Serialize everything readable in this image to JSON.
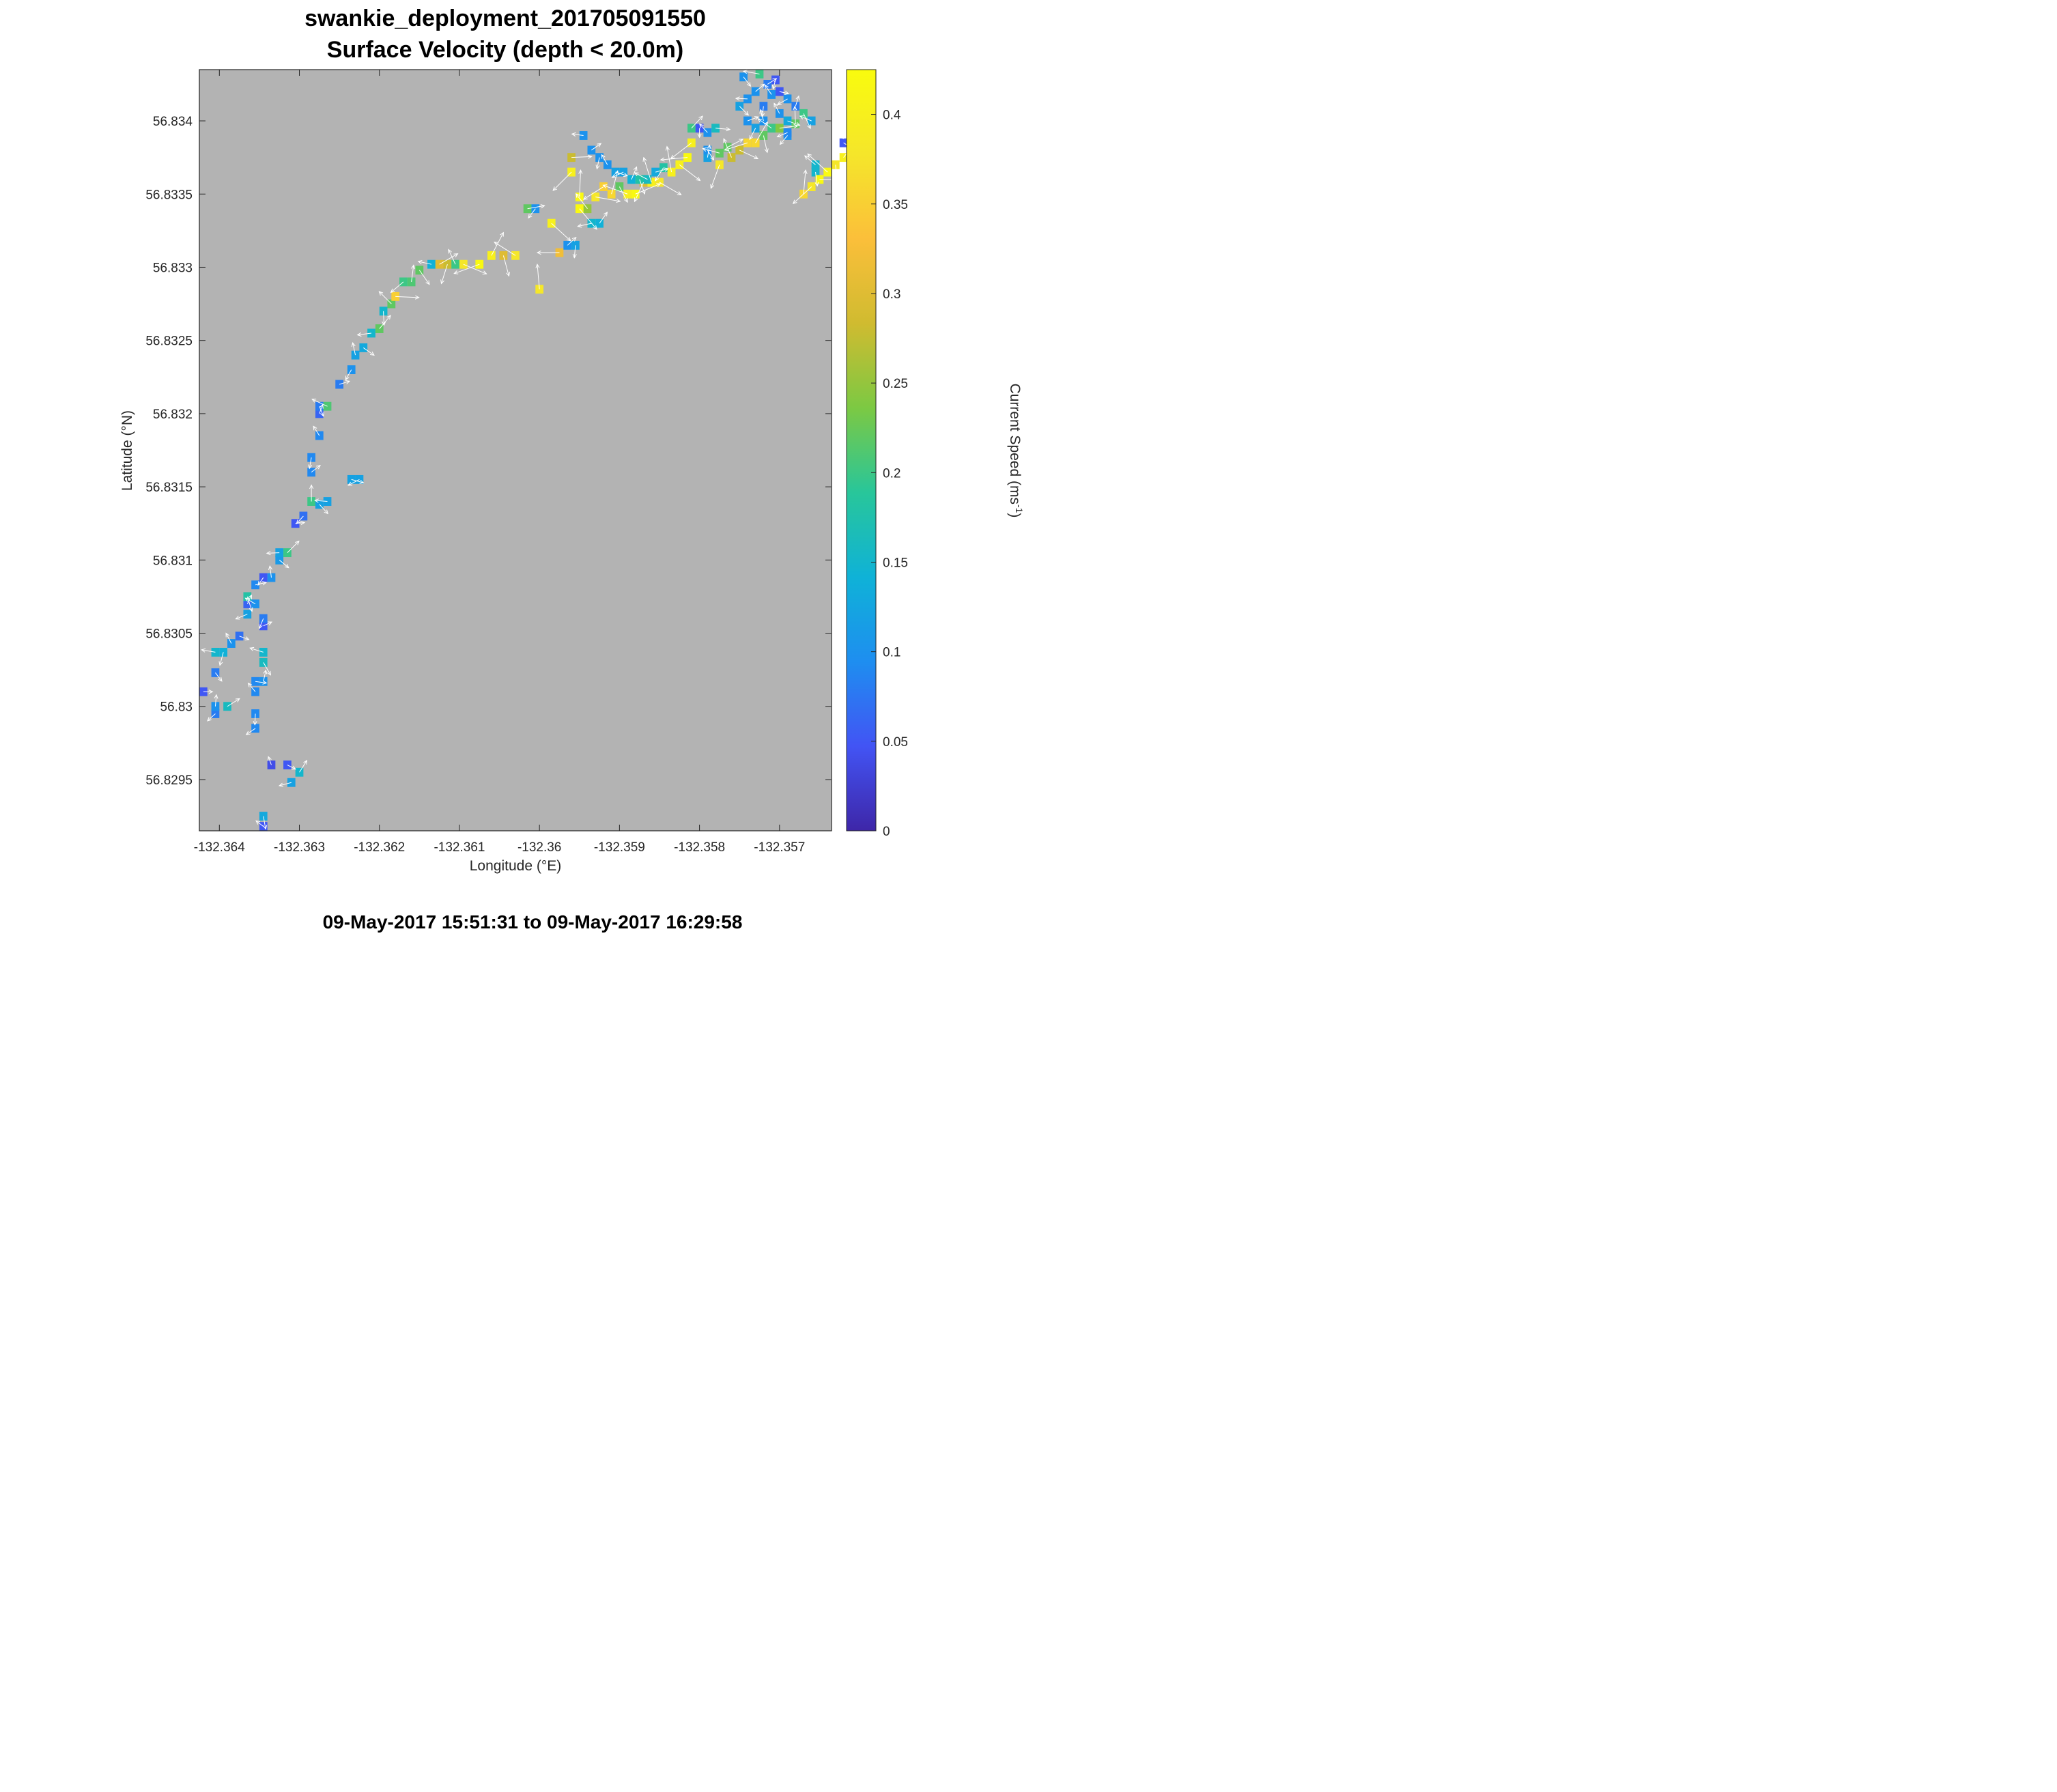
{
  "title_line1": "swankie_deployment_201705091550",
  "title_line2": "Surface Velocity (depth < 20.0m)",
  "footer": "09-May-2017 15:51:31 to 09-May-2017 16:29:58",
  "colors": {
    "plot_background": "#b3b3b3",
    "arrow": "#ffffff",
    "colormap": [
      "#3e26a8",
      "#4254f4",
      "#1e8ef0",
      "#0fb2d7",
      "#28c69a",
      "#7cc943",
      "#d0bb30",
      "#fbbf3a",
      "#f5e62a",
      "#f9fb0e"
    ]
  },
  "chart_data": {
    "type": "heatmap",
    "subtype": "gridded vector field (speed-colored cells with velocity arrows)",
    "xlabel": "Longitude (°E)",
    "ylabel": "Latitude (°N)",
    "colorbar_label": "Current Speed (ms",
    "colorbar_label_sup": "-1",
    "colorbar_label_end": ")",
    "xlim": [
      -132.36425,
      -132.35635
    ],
    "ylim": [
      56.82915,
      56.83435
    ],
    "clim": [
      0,
      0.425
    ],
    "grid": false,
    "xticks": [
      -132.364,
      -132.363,
      -132.362,
      -132.361,
      -132.36,
      -132.359,
      -132.358,
      -132.357
    ],
    "xtick_labels": [
      "-132.364",
      "-132.363",
      "-132.362",
      "-132.361",
      "-132.36",
      "-132.359",
      "-132.358",
      "-132.357"
    ],
    "yticks": [
      56.8295,
      56.83,
      56.8305,
      56.831,
      56.8315,
      56.832,
      56.8325,
      56.833,
      56.8335,
      56.834
    ],
    "ytick_labels": [
      "56.8295",
      "56.83",
      "56.8305",
      "56.831",
      "56.8315",
      "56.832",
      "56.8325",
      "56.833",
      "56.8335",
      "56.834"
    ],
    "cticks": [
      0,
      0.05,
      0.1,
      0.15,
      0.2,
      0.25,
      0.3,
      0.35,
      0.4
    ],
    "ctick_labels": [
      "0",
      "0.05",
      "0.1",
      "0.15",
      "0.2",
      "0.25",
      "0.3",
      "0.35",
      "0.4"
    ],
    "cell_size": {
      "lon": 0.0001,
      "lat": 6e-05
    },
    "cells": [
      {
        "lon": -132.3642,
        "lat": 56.8301,
        "speed": 0.05
      },
      {
        "lon": -132.36405,
        "lat": 56.82995,
        "speed": 0.08
      },
      {
        "lon": -132.36405,
        "lat": 56.83,
        "speed": 0.1
      },
      {
        "lon": -132.36405,
        "lat": 56.83023,
        "speed": 0.08
      },
      {
        "lon": -132.36405,
        "lat": 56.83037,
        "speed": 0.15
      },
      {
        "lon": -132.3639,
        "lat": 56.83,
        "speed": 0.16
      },
      {
        "lon": -132.36395,
        "lat": 56.83037,
        "speed": 0.14
      },
      {
        "lon": -132.36385,
        "lat": 56.83043,
        "speed": 0.1
      },
      {
        "lon": -132.36375,
        "lat": 56.83048,
        "speed": 0.07
      },
      {
        "lon": -132.36365,
        "lat": 56.83063,
        "speed": 0.12
      },
      {
        "lon": -132.36365,
        "lat": 56.8307,
        "speed": 0.06
      },
      {
        "lon": -132.36365,
        "lat": 56.83075,
        "speed": 0.18
      },
      {
        "lon": -132.36355,
        "lat": 56.8307,
        "speed": 0.1
      },
      {
        "lon": -132.36355,
        "lat": 56.83083,
        "speed": 0.09
      },
      {
        "lon": -132.36345,
        "lat": 56.83088,
        "speed": 0.05
      },
      {
        "lon": -132.36335,
        "lat": 56.83088,
        "speed": 0.1
      },
      {
        "lon": -132.36325,
        "lat": 56.831,
        "speed": 0.11
      },
      {
        "lon": -132.36325,
        "lat": 56.83105,
        "speed": 0.12
      },
      {
        "lon": -132.36315,
        "lat": 56.83105,
        "speed": 0.2
      },
      {
        "lon": -132.36355,
        "lat": 56.82995,
        "speed": 0.09
      },
      {
        "lon": -132.36355,
        "lat": 56.8301,
        "speed": 0.09
      },
      {
        "lon": -132.36355,
        "lat": 56.83017,
        "speed": 0.09
      },
      {
        "lon": -132.36355,
        "lat": 56.82985,
        "speed": 0.09
      },
      {
        "lon": -132.36345,
        "lat": 56.83017,
        "speed": 0.1
      },
      {
        "lon": -132.36345,
        "lat": 56.8303,
        "speed": 0.16
      },
      {
        "lon": -132.36345,
        "lat": 56.83037,
        "speed": 0.15
      },
      {
        "lon": -132.36345,
        "lat": 56.83055,
        "speed": 0.05
      },
      {
        "lon": -132.36345,
        "lat": 56.8306,
        "speed": 0.08
      },
      {
        "lon": -132.36335,
        "lat": 56.8296,
        "speed": 0.04
      },
      {
        "lon": -132.36315,
        "lat": 56.8296,
        "speed": 0.05
      },
      {
        "lon": -132.3631,
        "lat": 56.82948,
        "speed": 0.12
      },
      {
        "lon": -132.363,
        "lat": 56.82955,
        "speed": 0.15
      },
      {
        "lon": -132.36345,
        "lat": 56.82925,
        "speed": 0.13
      },
      {
        "lon": -132.36345,
        "lat": 56.82918,
        "speed": 0.05
      },
      {
        "lon": -132.36305,
        "lat": 56.83125,
        "speed": 0.05
      },
      {
        "lon": -132.36295,
        "lat": 56.8313,
        "speed": 0.07
      },
      {
        "lon": -132.36285,
        "lat": 56.8314,
        "speed": 0.2
      },
      {
        "lon": -132.36275,
        "lat": 56.83138,
        "speed": 0.12
      },
      {
        "lon": -132.36265,
        "lat": 56.8314,
        "speed": 0.12
      },
      {
        "lon": -132.36285,
        "lat": 56.8316,
        "speed": 0.09
      },
      {
        "lon": -132.36285,
        "lat": 56.8317,
        "speed": 0.09
      },
      {
        "lon": -132.36275,
        "lat": 56.83185,
        "speed": 0.09
      },
      {
        "lon": -132.36235,
        "lat": 56.83155,
        "speed": 0.12
      },
      {
        "lon": -132.36225,
        "lat": 56.83155,
        "speed": 0.12
      },
      {
        "lon": -132.36275,
        "lat": 56.832,
        "speed": 0.06
      },
      {
        "lon": -132.36275,
        "lat": 56.83205,
        "speed": 0.08
      },
      {
        "lon": -132.36265,
        "lat": 56.83205,
        "speed": 0.21
      },
      {
        "lon": -132.3625,
        "lat": 56.8322,
        "speed": 0.08
      },
      {
        "lon": -132.36235,
        "lat": 56.8323,
        "speed": 0.1
      },
      {
        "lon": -132.3623,
        "lat": 56.8324,
        "speed": 0.12
      },
      {
        "lon": -132.3622,
        "lat": 56.83245,
        "speed": 0.13
      },
      {
        "lon": -132.3621,
        "lat": 56.83255,
        "speed": 0.15
      },
      {
        "lon": -132.362,
        "lat": 56.83258,
        "speed": 0.22
      },
      {
        "lon": -132.36195,
        "lat": 56.8327,
        "speed": 0.15
      },
      {
        "lon": -132.36185,
        "lat": 56.83275,
        "speed": 0.22
      },
      {
        "lon": -132.3618,
        "lat": 56.8328,
        "speed": 0.35
      },
      {
        "lon": -132.3617,
        "lat": 56.8329,
        "speed": 0.2
      },
      {
        "lon": -132.3616,
        "lat": 56.8329,
        "speed": 0.21
      },
      {
        "lon": -132.3615,
        "lat": 56.83298,
        "speed": 0.22
      },
      {
        "lon": -132.36135,
        "lat": 56.83302,
        "speed": 0.14
      },
      {
        "lon": -132.36125,
        "lat": 56.83302,
        "speed": 0.3
      },
      {
        "lon": -132.36115,
        "lat": 56.83302,
        "speed": 0.28
      },
      {
        "lon": -132.36105,
        "lat": 56.83302,
        "speed": 0.2
      },
      {
        "lon": -132.36095,
        "lat": 56.83302,
        "speed": 0.38
      },
      {
        "lon": -132.36075,
        "lat": 56.83302,
        "speed": 0.42
      },
      {
        "lon": -132.3606,
        "lat": 56.83308,
        "speed": 0.4
      },
      {
        "lon": -132.36045,
        "lat": 56.83308,
        "speed": 0.3
      },
      {
        "lon": -132.3603,
        "lat": 56.83308,
        "speed": 0.38
      },
      {
        "lon": -132.36015,
        "lat": 56.8334,
        "speed": 0.22
      },
      {
        "lon": -132.36005,
        "lat": 56.8334,
        "speed": 0.1
      },
      {
        "lon": -132.36,
        "lat": 56.83285,
        "speed": 0.38
      },
      {
        "lon": -132.35985,
        "lat": 56.8333,
        "speed": 0.4
      },
      {
        "lon": -132.35975,
        "lat": 56.8331,
        "speed": 0.32
      },
      {
        "lon": -132.35965,
        "lat": 56.83315,
        "speed": 0.1
      },
      {
        "lon": -132.35955,
        "lat": 56.83315,
        "speed": 0.12
      },
      {
        "lon": -132.3594,
        "lat": 56.8334,
        "speed": 0.25
      },
      {
        "lon": -132.3593,
        "lat": 56.83348,
        "speed": 0.38
      },
      {
        "lon": -132.3592,
        "lat": 56.83355,
        "speed": 0.35
      },
      {
        "lon": -132.3591,
        "lat": 56.8335,
        "speed": 0.36
      },
      {
        "lon": -132.359,
        "lat": 56.83355,
        "speed": 0.22
      },
      {
        "lon": -132.3589,
        "lat": 56.8335,
        "speed": 0.4
      },
      {
        "lon": -132.3588,
        "lat": 56.8335,
        "speed": 0.42
      },
      {
        "lon": -132.3587,
        "lat": 56.83358,
        "speed": 0.3
      },
      {
        "lon": -132.3586,
        "lat": 56.83358,
        "speed": 0.4
      },
      {
        "lon": -132.3585,
        "lat": 56.83358,
        "speed": 0.38
      },
      {
        "lon": -132.35935,
        "lat": 56.8333,
        "speed": 0.15
      },
      {
        "lon": -132.35925,
        "lat": 56.8333,
        "speed": 0.14
      },
      {
        "lon": -132.35655,
        "lat": 56.83365,
        "speed": 0.15
      },
      {
        "lon": -132.35655,
        "lat": 56.8337,
        "speed": 0.15
      },
      {
        "lon": -132.3596,
        "lat": 56.83375,
        "speed": 0.28
      },
      {
        "lon": -132.3596,
        "lat": 56.83365,
        "speed": 0.4
      },
      {
        "lon": -132.3595,
        "lat": 56.83348,
        "speed": 0.42
      },
      {
        "lon": -132.3595,
        "lat": 56.8334,
        "speed": 0.42
      },
      {
        "lon": -132.35945,
        "lat": 56.8339,
        "speed": 0.1
      },
      {
        "lon": -132.35935,
        "lat": 56.8338,
        "speed": 0.1
      },
      {
        "lon": -132.35925,
        "lat": 56.83375,
        "speed": 0.1
      },
      {
        "lon": -132.35915,
        "lat": 56.8337,
        "speed": 0.1
      },
      {
        "lon": -132.35905,
        "lat": 56.83365,
        "speed": 0.12
      },
      {
        "lon": -132.35895,
        "lat": 56.83365,
        "speed": 0.12
      },
      {
        "lon": -132.35885,
        "lat": 56.8336,
        "speed": 0.14
      },
      {
        "lon": -132.35875,
        "lat": 56.8336,
        "speed": 0.18
      },
      {
        "lon": -132.35865,
        "lat": 56.8336,
        "speed": 0.16
      },
      {
        "lon": -132.35855,
        "lat": 56.83365,
        "speed": 0.13
      },
      {
        "lon": -132.35845,
        "lat": 56.83368,
        "speed": 0.18
      },
      {
        "lon": -132.35835,
        "lat": 56.83365,
        "speed": 0.4
      },
      {
        "lon": -132.35825,
        "lat": 56.8337,
        "speed": 0.4
      },
      {
        "lon": -132.35815,
        "lat": 56.83375,
        "speed": 0.42
      },
      {
        "lon": -132.3581,
        "lat": 56.83395,
        "speed": 0.2
      },
      {
        "lon": -132.358,
        "lat": 56.83395,
        "speed": 0.05
      },
      {
        "lon": -132.3579,
        "lat": 56.83392,
        "speed": 0.1
      },
      {
        "lon": -132.3578,
        "lat": 56.83395,
        "speed": 0.16
      },
      {
        "lon": -132.3581,
        "lat": 56.83385,
        "speed": 0.4
      },
      {
        "lon": -132.3579,
        "lat": 56.83375,
        "speed": 0.12
      },
      {
        "lon": -132.3579,
        "lat": 56.8338,
        "speed": 0.1
      },
      {
        "lon": -132.35775,
        "lat": 56.83378,
        "speed": 0.22
      },
      {
        "lon": -132.35765,
        "lat": 56.83382,
        "speed": 0.22
      },
      {
        "lon": -132.35775,
        "lat": 56.8337,
        "speed": 0.38
      },
      {
        "lon": -132.3576,
        "lat": 56.83375,
        "speed": 0.28
      },
      {
        "lon": -132.3575,
        "lat": 56.8338,
        "speed": 0.28
      },
      {
        "lon": -132.3574,
        "lat": 56.83385,
        "speed": 0.36
      },
      {
        "lon": -132.3573,
        "lat": 56.83385,
        "speed": 0.36
      },
      {
        "lon": -132.3572,
        "lat": 56.8339,
        "speed": 0.22
      },
      {
        "lon": -132.3571,
        "lat": 56.83395,
        "speed": 0.2
      },
      {
        "lon": -132.357,
        "lat": 56.83395,
        "speed": 0.24
      },
      {
        "lon": -132.3569,
        "lat": 56.8339,
        "speed": 0.1
      },
      {
        "lon": -132.3568,
        "lat": 56.83398,
        "speed": 0.22
      },
      {
        "lon": -132.3575,
        "lat": 56.8341,
        "speed": 0.12
      },
      {
        "lon": -132.3574,
        "lat": 56.83415,
        "speed": 0.1
      },
      {
        "lon": -132.3573,
        "lat": 56.8342,
        "speed": 0.1
      },
      {
        "lon": -132.3572,
        "lat": 56.8341,
        "speed": 0.08
      },
      {
        "lon": -132.3571,
        "lat": 56.83418,
        "speed": 0.1
      },
      {
        "lon": -132.357,
        "lat": 56.8342,
        "speed": 0.05
      },
      {
        "lon": -132.3569,
        "lat": 56.83415,
        "speed": 0.1
      },
      {
        "lon": -132.3568,
        "lat": 56.8341,
        "speed": 0.08
      },
      {
        "lon": -132.3567,
        "lat": 56.83405,
        "speed": 0.2
      },
      {
        "lon": -132.3566,
        "lat": 56.834,
        "speed": 0.12
      },
      {
        "lon": -132.3574,
        "lat": 56.834,
        "speed": 0.1
      },
      {
        "lon": -132.3573,
        "lat": 56.83395,
        "speed": 0.12
      },
      {
        "lon": -132.3572,
        "lat": 56.834,
        "speed": 0.1
      },
      {
        "lon": -132.3562,
        "lat": 56.83385,
        "speed": 0.05
      },
      {
        "lon": -132.3561,
        "lat": 56.8339,
        "speed": 0.1
      },
      {
        "lon": -132.3562,
        "lat": 56.83375,
        "speed": 0.4
      },
      {
        "lon": -132.3563,
        "lat": 56.8337,
        "speed": 0.38
      },
      {
        "lon": -132.3564,
        "lat": 56.83365,
        "speed": 0.42
      },
      {
        "lon": -132.3565,
        "lat": 56.8336,
        "speed": 0.42
      },
      {
        "lon": -132.3566,
        "lat": 56.83355,
        "speed": 0.38
      },
      {
        "lon": -132.3567,
        "lat": 56.8335,
        "speed": 0.36
      },
      {
        "lon": -132.35745,
        "lat": 56.8343,
        "speed": 0.1
      },
      {
        "lon": -132.35725,
        "lat": 56.83432,
        "speed": 0.2
      },
      {
        "lon": -132.35715,
        "lat": 56.83425,
        "speed": 0.08
      },
      {
        "lon": -132.35705,
        "lat": 56.83428,
        "speed": 0.05
      },
      {
        "lon": -132.357,
        "lat": 56.83405,
        "speed": 0.1
      },
      {
        "lon": -132.3569,
        "lat": 56.834,
        "speed": 0.13
      },
      {
        "lon": -132.3569,
        "lat": 56.83392,
        "speed": 0.09
      }
    ],
    "vectors_note": "white arrows show current direction at each cell"
  }
}
